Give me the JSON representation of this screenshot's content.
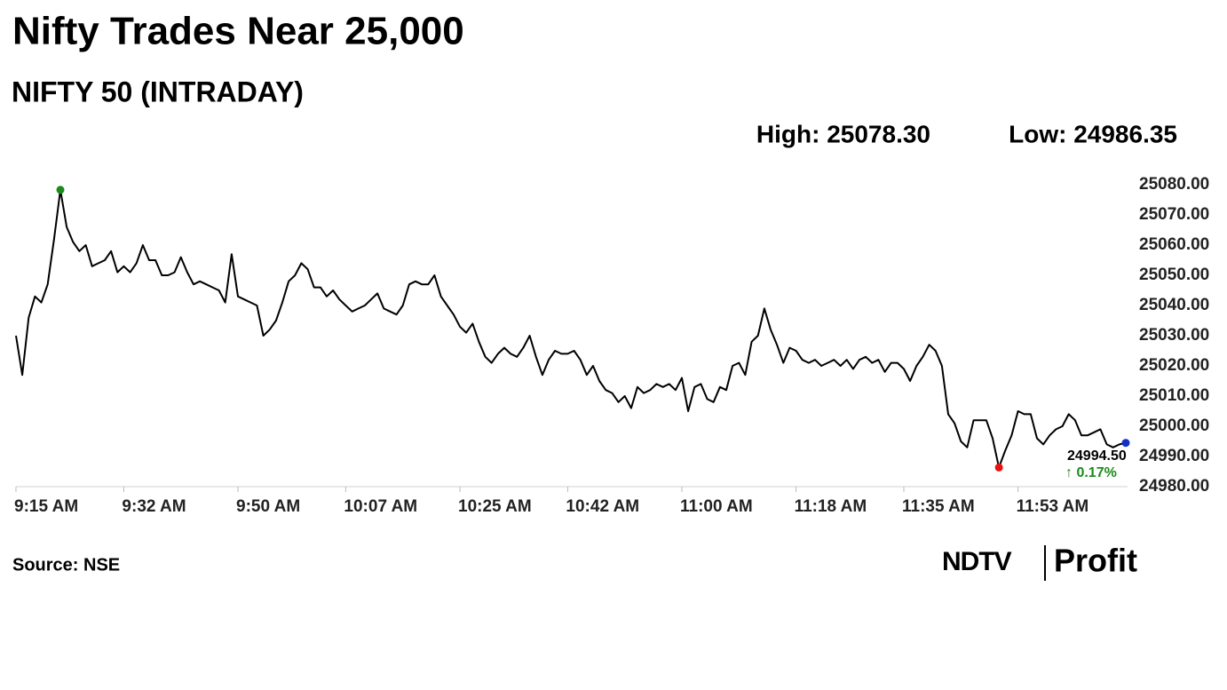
{
  "chart_data": {
    "type": "line",
    "title": "Nifty Trades Near 25,000",
    "subtitle": "NIFTY 50 (INTRADAY)",
    "high_label": "High: 25078.30",
    "low_label": "Low: 24986.35",
    "last_label": "24994.50",
    "change_label": "↑ 0.17%",
    "change_color": "#1a8a1a",
    "source": "Source: NSE",
    "brand": {
      "name": "NDTV",
      "product": "Profit"
    },
    "color": "#000000",
    "high_color": "#1a8a1a",
    "low_color": "#e81010",
    "last_color": "#1030c8",
    "x": [
      "9:15 AM",
      "9:16 AM",
      "9:17 AM",
      "9:18 AM",
      "9:19 AM",
      "9:20 AM",
      "9:21 AM",
      "9:22 AM",
      "9:23 AM",
      "9:24 AM",
      "9:25 AM",
      "9:26 AM",
      "9:27 AM",
      "9:28 AM",
      "9:29 AM",
      "9:30 AM",
      "9:31 AM",
      "9:32 AM",
      "9:33 AM",
      "9:34 AM",
      "9:35 AM",
      "9:36 AM",
      "9:37 AM",
      "9:38 AM",
      "9:39 AM",
      "9:40 AM",
      "9:41 AM",
      "9:42 AM",
      "9:43 AM",
      "9:44 AM",
      "9:45 AM",
      "9:46 AM",
      "9:47 AM",
      "9:48 AM",
      "9:49 AM",
      "9:50 AM",
      "9:51 AM",
      "9:52 AM",
      "9:53 AM",
      "9:54 AM",
      "9:55 AM",
      "9:56 AM",
      "9:57 AM",
      "9:58 AM",
      "9:59 AM",
      "10:00 AM",
      "10:01 AM",
      "10:02 AM",
      "10:03 AM",
      "10:04 AM",
      "10:05 AM",
      "10:06 AM",
      "10:07 AM",
      "10:08 AM",
      "10:09 AM",
      "10:10 AM",
      "10:11 AM",
      "10:12 AM",
      "10:13 AM",
      "10:14 AM",
      "10:15 AM",
      "10:16 AM",
      "10:17 AM",
      "10:18 AM",
      "10:19 AM",
      "10:20 AM",
      "10:21 AM",
      "10:22 AM",
      "10:23 AM",
      "10:24 AM",
      "10:25 AM",
      "10:26 AM",
      "10:27 AM",
      "10:28 AM",
      "10:29 AM",
      "10:30 AM",
      "10:31 AM",
      "10:32 AM",
      "10:33 AM",
      "10:34 AM",
      "10:35 AM",
      "10:36 AM",
      "10:37 AM",
      "10:38 AM",
      "10:39 AM",
      "10:40 AM",
      "10:41 AM",
      "10:42 AM",
      "10:43 AM",
      "10:44 AM",
      "10:45 AM",
      "10:46 AM",
      "10:47 AM",
      "10:48 AM",
      "10:49 AM",
      "10:50 AM",
      "10:51 AM",
      "10:52 AM",
      "10:53 AM",
      "10:54 AM",
      "10:55 AM",
      "10:56 AM",
      "10:57 AM",
      "10:58 AM",
      "10:59 AM",
      "11:00 AM",
      "11:01 AM",
      "11:02 AM",
      "11:03 AM",
      "11:04 AM",
      "11:05 AM",
      "11:06 AM",
      "11:07 AM",
      "11:08 AM",
      "11:09 AM",
      "11:10 AM",
      "11:11 AM",
      "11:12 AM",
      "11:13 AM",
      "11:14 AM",
      "11:15 AM",
      "11:16 AM",
      "11:17 AM",
      "11:18 AM",
      "11:19 AM",
      "11:20 AM",
      "11:21 AM",
      "11:22 AM",
      "11:23 AM",
      "11:24 AM",
      "11:25 AM",
      "11:26 AM",
      "11:27 AM",
      "11:28 AM",
      "11:29 AM",
      "11:30 AM",
      "11:31 AM",
      "11:32 AM",
      "11:33 AM",
      "11:34 AM",
      "11:35 AM",
      "11:36 AM",
      "11:37 AM",
      "11:38 AM",
      "11:39 AM",
      "11:40 AM",
      "11:41 AM",
      "11:42 AM",
      "11:43 AM",
      "11:44 AM",
      "11:45 AM",
      "11:46 AM",
      "11:47 AM",
      "11:48 AM",
      "11:49 AM",
      "11:50 AM",
      "11:51 AM",
      "11:52 AM",
      "11:53 AM",
      "11:54 AM",
      "11:55 AM",
      "11:56 AM",
      "11:57 AM",
      "11:58 AM",
      "11:59 AM",
      "12:00 PM",
      "12:01 PM",
      "12:02 PM",
      "12:03 PM",
      "12:04 PM",
      "12:05 PM",
      "12:06 PM",
      "12:07 PM",
      "12:08 PM",
      "12:09 PM",
      "12:10 PM"
    ],
    "values": [
      25030,
      25017,
      25036,
      25043,
      25041,
      25047,
      25062,
      25078.3,
      25066,
      25061,
      25058,
      25060,
      25053,
      25054,
      25055,
      25058,
      25051,
      25053,
      25051,
      25054,
      25060,
      25055,
      25055,
      25050,
      25050,
      25051,
      25056,
      25051,
      25047,
      25048,
      25047,
      25046,
      25045,
      25041,
      25057,
      25043,
      25042,
      25041,
      25040,
      25030,
      25032,
      25035,
      25041,
      25048,
      25050,
      25054,
      25052,
      25046,
      25046,
      25043,
      25045,
      25042,
      25040,
      25038,
      25039,
      25040,
      25042,
      25044,
      25039,
      25038,
      25037,
      25040,
      25047,
      25048,
      25047,
      25047,
      25050,
      25043,
      25040,
      25037,
      25033,
      25031,
      25034,
      25028,
      25023,
      25021,
      25024,
      25026,
      25024,
      25023,
      25026,
      25030,
      25023,
      25017,
      25022,
      25025,
      25024,
      25024,
      25025,
      25022,
      25017,
      25020,
      25015,
      25012,
      25011,
      25008,
      25010,
      25006,
      25013,
      25011,
      25012,
      25014,
      25013,
      25014,
      25012,
      25016,
      25005,
      25013,
      25014,
      25009,
      25008,
      25013,
      25012,
      25020,
      25021,
      25017,
      25028,
      25030,
      25039,
      25032,
      25027,
      25021,
      25026,
      25025,
      25022,
      25021,
      25022,
      25020,
      25021,
      25022,
      25020,
      25022,
      25019,
      25022,
      25023,
      25021,
      25022,
      25018,
      25021,
      25021,
      25019,
      25015,
      25020,
      25023,
      25027,
      25025,
      25020,
      25004,
      25001,
      24995,
      24993,
      25002,
      25002,
      25002,
      24996,
      24986.35,
      24992,
      24997,
      25005,
      25004,
      25004,
      24996,
      24994,
      24997,
      24999,
      25000,
      25004,
      25002,
      24997,
      24997,
      24998,
      24999,
      24994,
      24993,
      24994,
      24994.5
    ],
    "xticks": [
      "9:15 AM",
      "9:32 AM",
      "9:50 AM",
      "10:07 AM",
      "10:25 AM",
      "10:42 AM",
      "11:00 AM",
      "11:18 AM",
      "11:35 AM",
      "11:53 AM"
    ],
    "ylim": [
      24980,
      25080
    ],
    "yticks": [
      {
        "value": 24980,
        "label": "24980.00"
      },
      {
        "value": 24990,
        "label": "24990.00"
      },
      {
        "value": 25000,
        "label": "25000.00"
      },
      {
        "value": 25010,
        "label": "25010.00"
      },
      {
        "value": 25020,
        "label": "25020.00"
      },
      {
        "value": 25030,
        "label": "25030.00"
      },
      {
        "value": 25040,
        "label": "25040.00"
      },
      {
        "value": 25050,
        "label": "25050.00"
      },
      {
        "value": 25060,
        "label": "25060.00"
      },
      {
        "value": 25070,
        "label": "25070.00"
      },
      {
        "value": 25080,
        "label": "25080.00"
      }
    ]
  }
}
